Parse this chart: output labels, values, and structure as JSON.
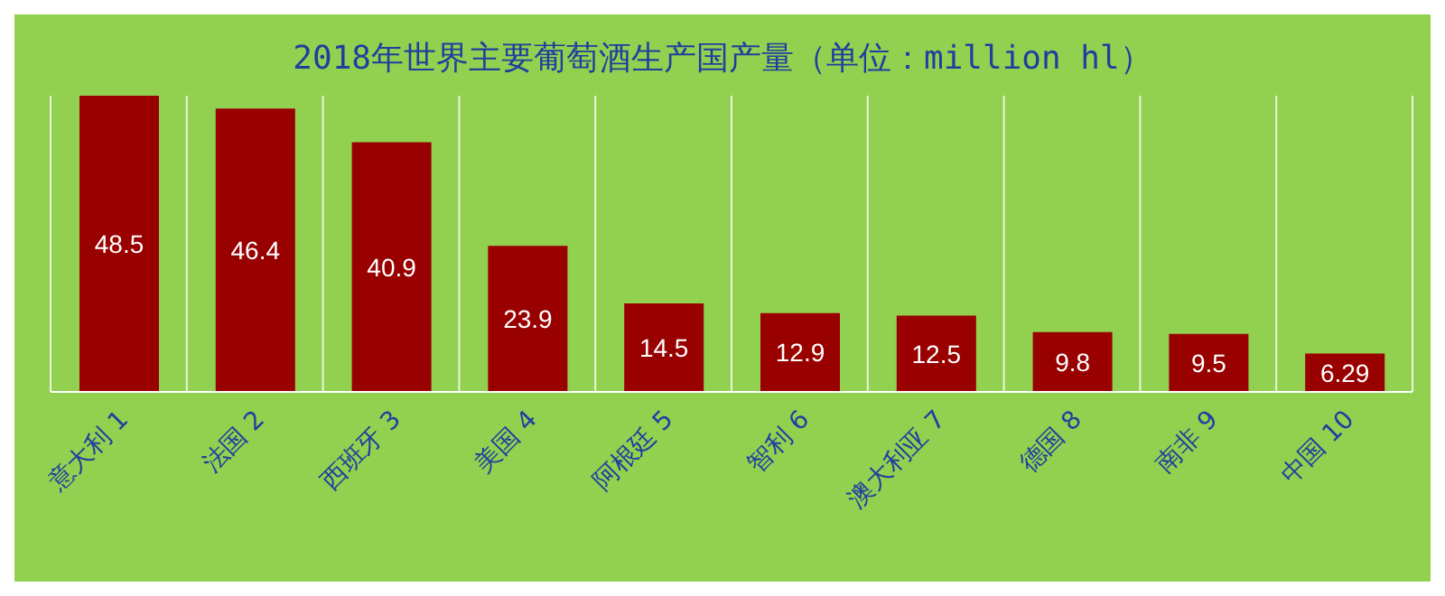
{
  "chart_data": {
    "type": "bar",
    "title": "2018年世界主要葡萄酒生产国产量（单位：million hl）",
    "categories": [
      "意大利 1",
      "法国 2",
      "西班牙 3",
      "美国 4",
      "阿根廷 5",
      "智利 6",
      "澳大利亚 7",
      "德国 8",
      "南非 9",
      "中国 10"
    ],
    "values": [
      48.5,
      46.4,
      40.9,
      23.9,
      14.5,
      12.9,
      12.5,
      9.8,
      9.5,
      6.29
    ],
    "color": "#990000",
    "data_labels": true,
    "grid": "x"
  }
}
